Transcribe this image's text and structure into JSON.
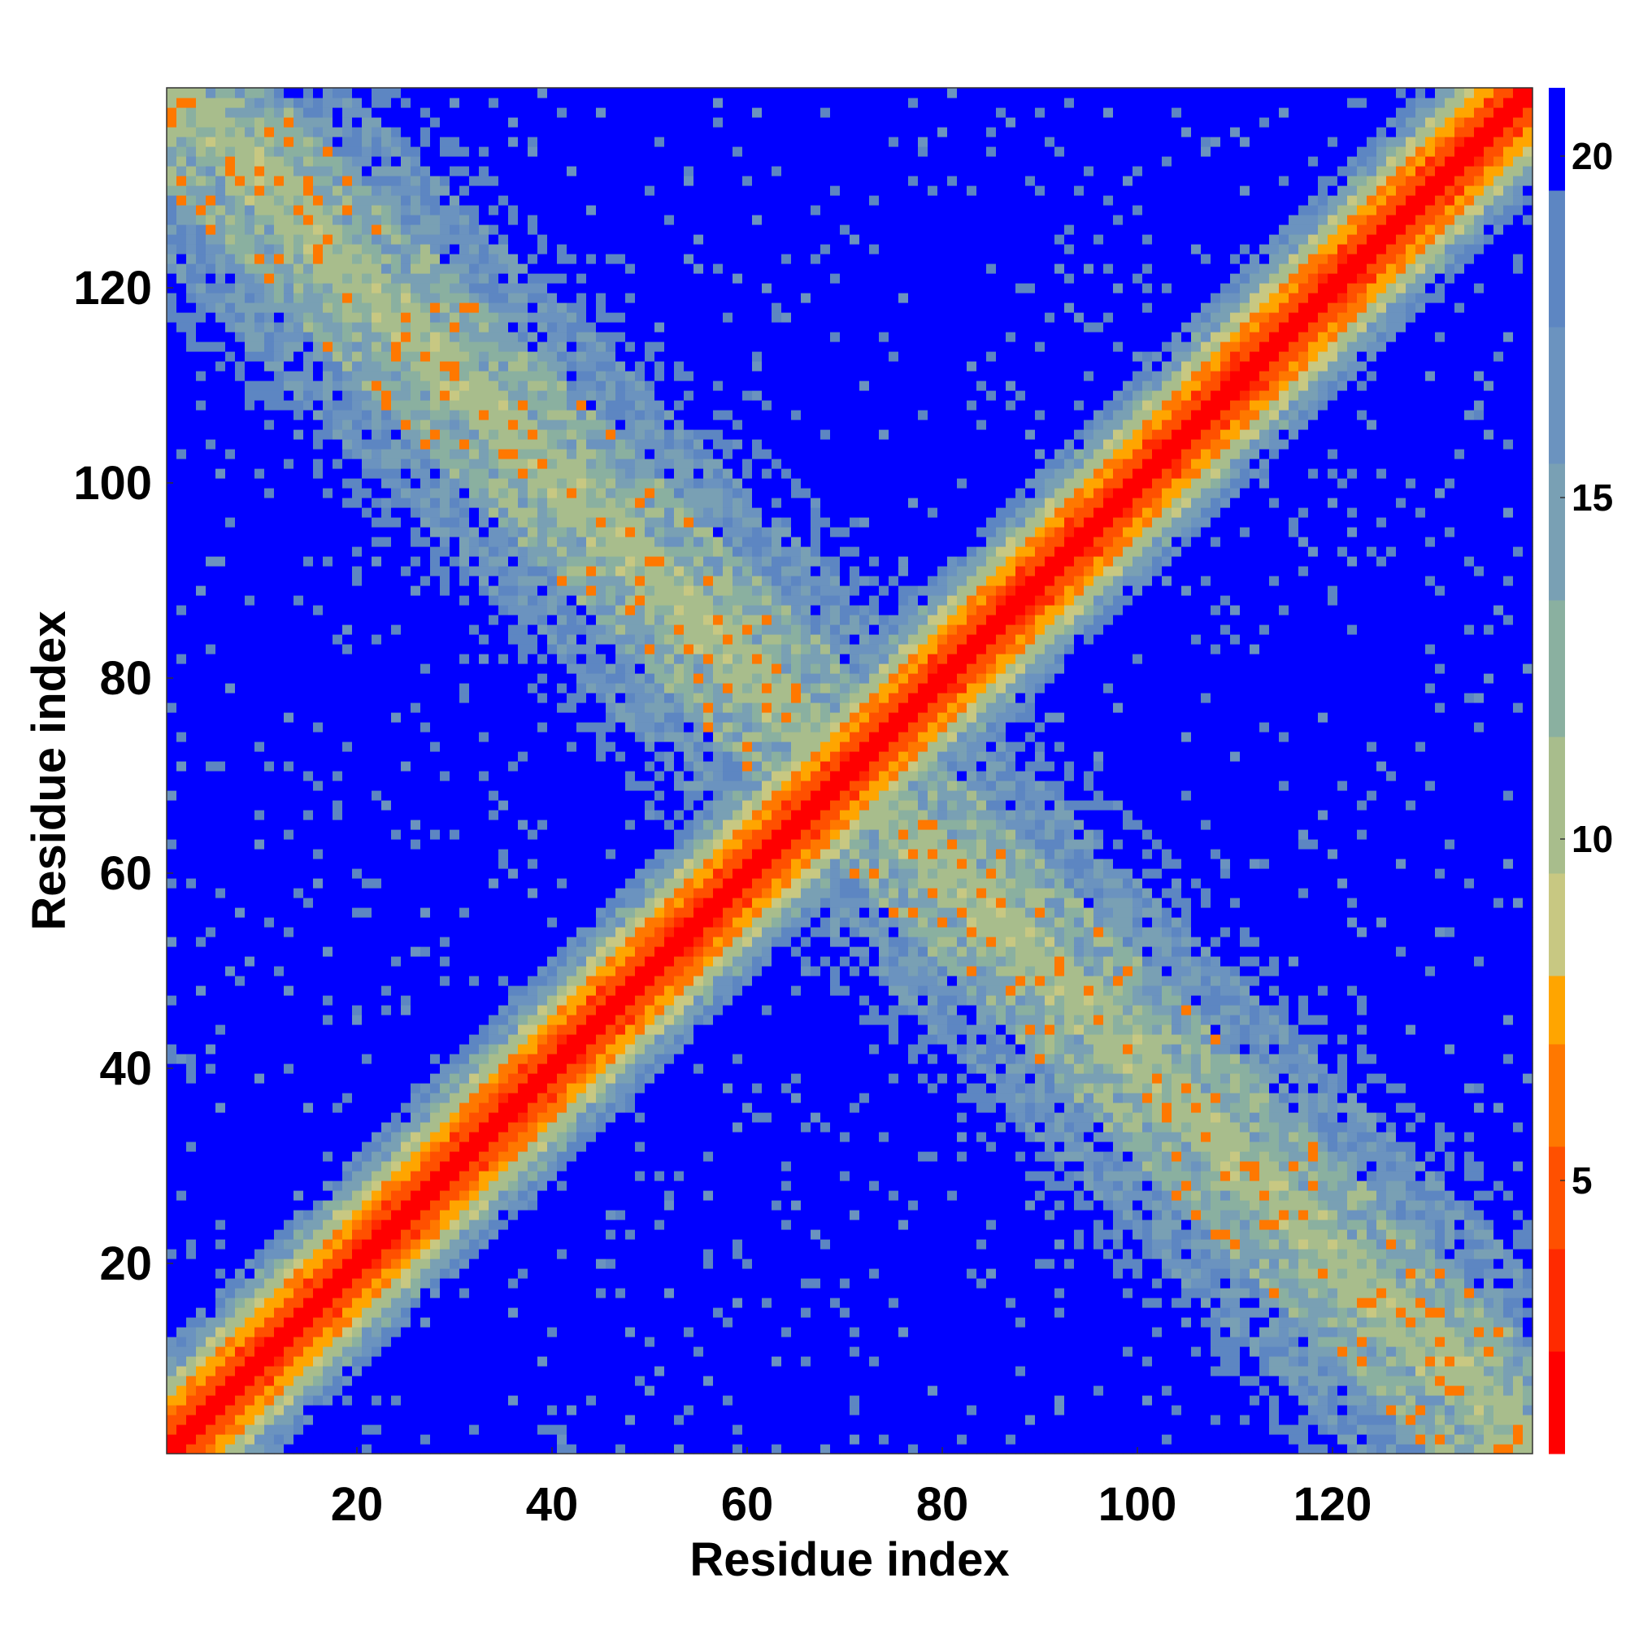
{
  "chart_data": {
    "type": "heatmap",
    "title": "",
    "xlabel": "Residue index",
    "ylabel": "Residue index",
    "xlim": [
      1,
      140
    ],
    "ylim": [
      1,
      140
    ],
    "x_ticks": [
      20,
      40,
      60,
      80,
      100,
      120
    ],
    "y_ticks": [
      20,
      40,
      60,
      80,
      100,
      120
    ],
    "grid": false,
    "description_matrix": "symmetric residue-residue distance map, 140 x 140",
    "diagonal_band": "low values (red, ~2) along the main diagonal widening to orange (~6) then green (~10) and steel-blue (~16) away from it",
    "anti_diagonal_band": "mid values (green/steel-blue, ~10-18) along the anti-diagonal crossing the map, with scattered orange contacts",
    "background_value": 21,
    "colorbar": {
      "range": [
        1,
        21
      ],
      "ticks": [
        5,
        10,
        15,
        20
      ],
      "colors": [
        {
          "max": 2.5,
          "color": "#ff0000"
        },
        {
          "max": 4.0,
          "color": "#ff2a00"
        },
        {
          "max": 5.5,
          "color": "#ff5000"
        },
        {
          "max": 7.0,
          "color": "#ff7800"
        },
        {
          "max": 8.0,
          "color": "#ffa500"
        },
        {
          "max": 9.5,
          "color": "#c8c882"
        },
        {
          "max": 11.5,
          "color": "#a8bd8c"
        },
        {
          "max": 13.5,
          "color": "#8ab0a0"
        },
        {
          "max": 15.5,
          "color": "#79a0b4"
        },
        {
          "max": 17.5,
          "color": "#6b93bf"
        },
        {
          "max": 19.5,
          "color": "#5d86c2"
        },
        {
          "max": 22,
          "color": "#0000ff"
        }
      ]
    }
  }
}
